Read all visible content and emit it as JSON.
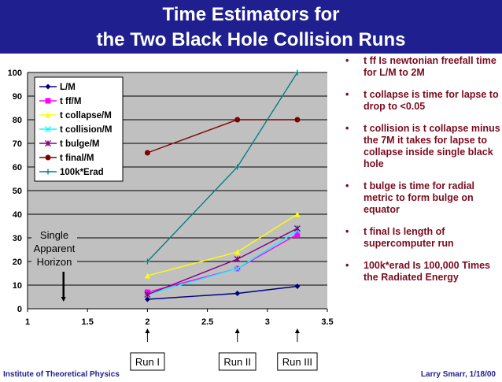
{
  "title": {
    "line1": "Time Estimators for",
    "line2": "the Two Black Hole Collision Runs"
  },
  "colors": {
    "header_bg": "#1f1f8f",
    "bullet_text": "#7b0a1e",
    "plot_bg": "#c0c0c0"
  },
  "chart_data": {
    "type": "line",
    "title": "",
    "xlabel": "",
    "ylabel": "",
    "xlim": [
      1,
      3.5
    ],
    "ylim": [
      0,
      100
    ],
    "xticks": [
      "1",
      "1.5",
      "2",
      "2.5",
      "3",
      "3.5"
    ],
    "yticks": [
      "0",
      "10",
      "20",
      "30",
      "40",
      "50",
      "60",
      "70",
      "80",
      "90",
      "100"
    ],
    "grid": true,
    "legend_position": "top-left",
    "series": [
      {
        "name": "L/M",
        "color": "#000080",
        "marker": "diamond",
        "x": [
          2,
          2.75,
          3.25
        ],
        "y": [
          4,
          6.5,
          9.5
        ]
      },
      {
        "name": "t ff/M",
        "color": "#ff00ff",
        "marker": "square",
        "x": [
          2,
          2.75,
          3.25
        ],
        "y": [
          7,
          17,
          31.5
        ]
      },
      {
        "name": "t collapse/M",
        "color": "#ffff00",
        "marker": "triangle",
        "x": [
          2,
          2.75,
          3.25
        ],
        "y": [
          14,
          24,
          40
        ]
      },
      {
        "name": "t collision/M",
        "color": "#00ffff",
        "marker": "x",
        "x": [
          2,
          2.75,
          3.25
        ],
        "y": [
          6,
          17,
          33
        ]
      },
      {
        "name": "t bulge/M",
        "color": "#800080",
        "marker": "star",
        "x": [
          2,
          2.75,
          3.25
        ],
        "y": [
          6,
          21,
          34
        ]
      },
      {
        "name": "t final/M",
        "color": "#800000",
        "marker": "circle",
        "x": [
          2,
          2.75,
          3.25
        ],
        "y": [
          66,
          80,
          80
        ]
      },
      {
        "name": "100k*Erad",
        "color": "#008080",
        "marker": "plus",
        "x": [
          2,
          2.75,
          3.25
        ],
        "y": [
          20,
          60,
          100
        ]
      }
    ],
    "annotations": [
      {
        "text": "Single Apparent Horizon",
        "lines": [
          "Single",
          "Apparent",
          "Horizon"
        ],
        "x": 1.3
      },
      {
        "text": "Run I",
        "x": 2
      },
      {
        "text": "Run II",
        "x": 2.75
      },
      {
        "text": "Run III",
        "x": 3.25
      }
    ]
  },
  "bullets": [
    "t ff Is newtonian freefall time for L/M to 2M",
    "t collapse is time for lapse to drop to <0.05",
    "t collision is t collapse minus the 7M it takes for lapse to collapse inside single black hole",
    "t bulge is time for radial metric to form bulge on equator",
    "t final Is length of supercomputer run",
    "100k*erad Is 100,000 Times the Radiated Energy"
  ],
  "bullet_symbol": "•",
  "footer": {
    "left": "Institute of Theoretical Physics",
    "right": "Larry Smarr, 1/18/00"
  }
}
